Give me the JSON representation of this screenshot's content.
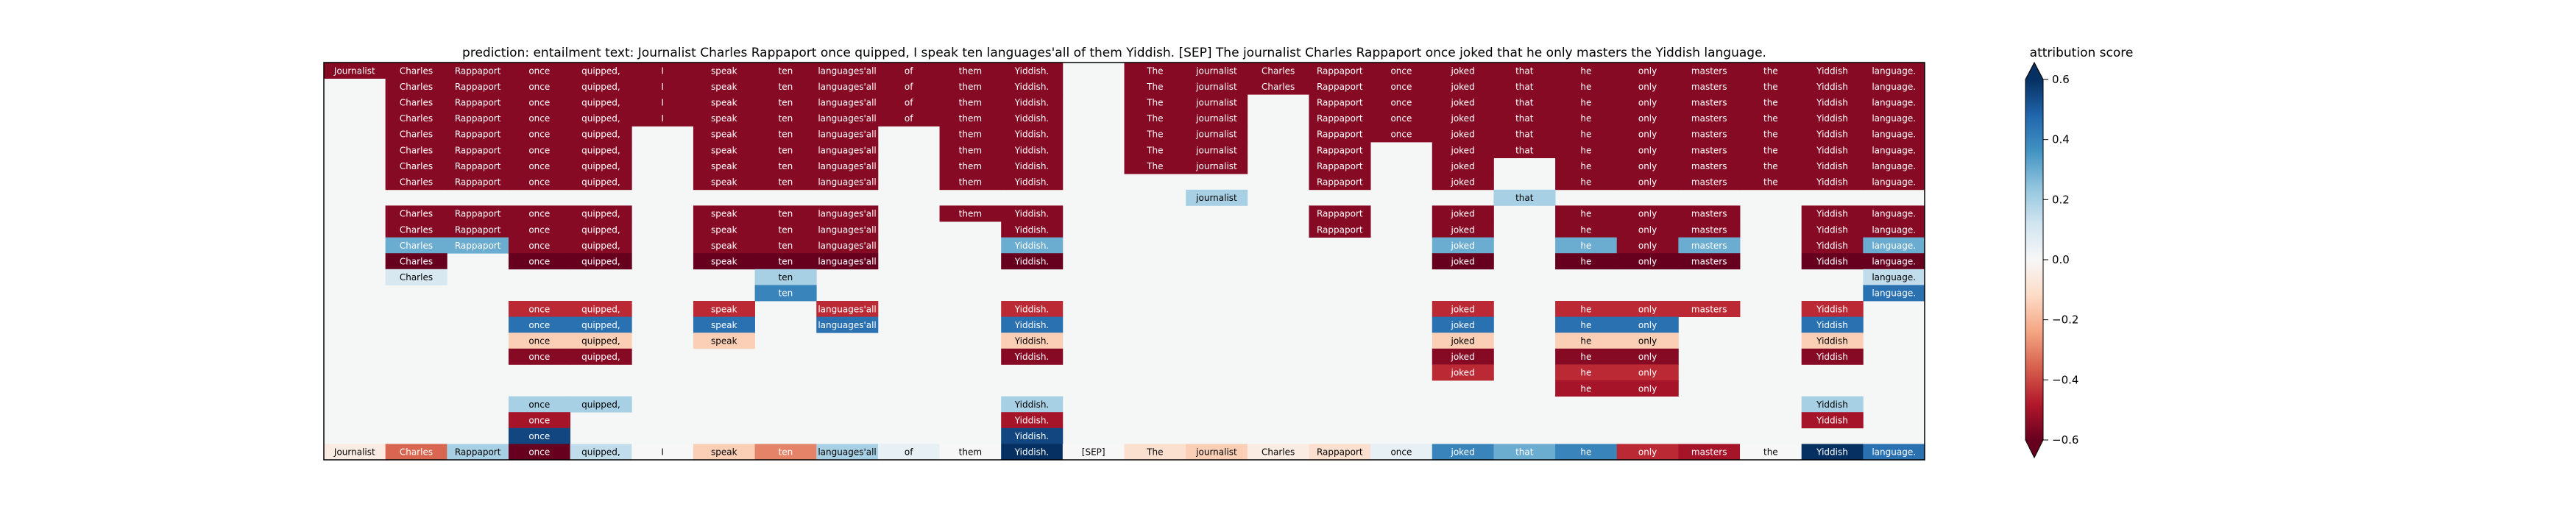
{
  "title": "prediction:  entailment     text:  Journalist Charles Rappaport once quipped, I speak ten languages'all of them Yiddish. [SEP] The journalist Charles Rappaport once joked that he only masters the Yiddish language.",
  "colorbar": {
    "label": "attribution score",
    "ticks": [
      "0.6",
      "0.4",
      "0.2",
      "0.0",
      "−0.2",
      "−0.4",
      "−0.6"
    ],
    "range": [
      -0.6,
      0.6
    ],
    "colormap": "RdBu"
  },
  "chart_data": {
    "type": "heatmap",
    "tokens": [
      "Journalist",
      "Charles",
      "Rappaport",
      "once",
      "quipped,",
      "I",
      "speak",
      "ten",
      "languages'all",
      "of",
      "them",
      "Yiddish.",
      "[SEP]",
      "The",
      "journalist",
      "Charles",
      "Rappaport",
      "once",
      "joked",
      "that",
      "he",
      "only",
      "masters",
      "the",
      "Yiddish",
      "language."
    ],
    "rows": [
      [
        [
          0,
          -0.55
        ],
        [
          1,
          -0.55
        ],
        [
          2,
          -0.55
        ],
        [
          3,
          -0.55
        ],
        [
          4,
          -0.55
        ],
        [
          5,
          -0.55
        ],
        [
          6,
          -0.55
        ],
        [
          7,
          -0.55
        ],
        [
          8,
          -0.55
        ],
        [
          9,
          -0.55
        ],
        [
          10,
          -0.55
        ],
        [
          11,
          -0.55
        ],
        [
          13,
          -0.55
        ],
        [
          14,
          -0.55
        ],
        [
          15,
          -0.55
        ],
        [
          16,
          -0.55
        ],
        [
          17,
          -0.55
        ],
        [
          18,
          -0.55
        ],
        [
          19,
          -0.55
        ],
        [
          20,
          -0.55
        ],
        [
          21,
          -0.55
        ],
        [
          22,
          -0.55
        ],
        [
          23,
          -0.55
        ],
        [
          24,
          -0.55
        ],
        [
          25,
          -0.55
        ]
      ],
      [
        [
          1,
          -0.55
        ],
        [
          2,
          -0.55
        ],
        [
          3,
          -0.55
        ],
        [
          4,
          -0.55
        ],
        [
          5,
          -0.55
        ],
        [
          6,
          -0.55
        ],
        [
          7,
          -0.55
        ],
        [
          8,
          -0.55
        ],
        [
          9,
          -0.55
        ],
        [
          10,
          -0.55
        ],
        [
          11,
          -0.55
        ],
        [
          13,
          -0.55
        ],
        [
          14,
          -0.55
        ],
        [
          15,
          -0.55
        ],
        [
          16,
          -0.55
        ],
        [
          17,
          -0.55
        ],
        [
          18,
          -0.55
        ],
        [
          19,
          -0.55
        ],
        [
          20,
          -0.55
        ],
        [
          21,
          -0.55
        ],
        [
          22,
          -0.55
        ],
        [
          23,
          -0.55
        ],
        [
          24,
          -0.55
        ],
        [
          25,
          -0.55
        ]
      ],
      [
        [
          1,
          -0.55
        ],
        [
          2,
          -0.55
        ],
        [
          3,
          -0.55
        ],
        [
          4,
          -0.55
        ],
        [
          5,
          -0.55
        ],
        [
          6,
          -0.55
        ],
        [
          7,
          -0.55
        ],
        [
          8,
          -0.55
        ],
        [
          9,
          -0.55
        ],
        [
          10,
          -0.55
        ],
        [
          11,
          -0.55
        ],
        [
          13,
          -0.55
        ],
        [
          14,
          -0.55
        ],
        [
          16,
          -0.55
        ],
        [
          17,
          -0.55
        ],
        [
          18,
          -0.55
        ],
        [
          19,
          -0.55
        ],
        [
          20,
          -0.55
        ],
        [
          21,
          -0.55
        ],
        [
          22,
          -0.55
        ],
        [
          23,
          -0.55
        ],
        [
          24,
          -0.55
        ],
        [
          25,
          -0.55
        ]
      ],
      [
        [
          1,
          -0.55
        ],
        [
          2,
          -0.55
        ],
        [
          3,
          -0.55
        ],
        [
          4,
          -0.55
        ],
        [
          5,
          -0.55
        ],
        [
          6,
          -0.55
        ],
        [
          7,
          -0.55
        ],
        [
          8,
          -0.55
        ],
        [
          9,
          -0.55
        ],
        [
          10,
          -0.55
        ],
        [
          11,
          -0.55
        ],
        [
          13,
          -0.55
        ],
        [
          14,
          -0.55
        ],
        [
          16,
          -0.55
        ],
        [
          17,
          -0.55
        ],
        [
          18,
          -0.55
        ],
        [
          19,
          -0.55
        ],
        [
          20,
          -0.55
        ],
        [
          21,
          -0.55
        ],
        [
          22,
          -0.55
        ],
        [
          23,
          -0.55
        ],
        [
          24,
          -0.55
        ],
        [
          25,
          -0.55
        ]
      ],
      [
        [
          1,
          -0.55
        ],
        [
          2,
          -0.55
        ],
        [
          3,
          -0.55
        ],
        [
          4,
          -0.55
        ],
        [
          6,
          -0.55
        ],
        [
          7,
          -0.55
        ],
        [
          8,
          -0.55
        ],
        [
          10,
          -0.55
        ],
        [
          11,
          -0.55
        ],
        [
          13,
          -0.55
        ],
        [
          14,
          -0.55
        ],
        [
          16,
          -0.55
        ],
        [
          17,
          -0.55
        ],
        [
          18,
          -0.55
        ],
        [
          19,
          -0.55
        ],
        [
          20,
          -0.55
        ],
        [
          21,
          -0.55
        ],
        [
          22,
          -0.55
        ],
        [
          23,
          -0.55
        ],
        [
          24,
          -0.55
        ],
        [
          25,
          -0.55
        ]
      ],
      [
        [
          1,
          -0.55
        ],
        [
          2,
          -0.55
        ],
        [
          3,
          -0.55
        ],
        [
          4,
          -0.55
        ],
        [
          6,
          -0.55
        ],
        [
          7,
          -0.55
        ],
        [
          8,
          -0.55
        ],
        [
          10,
          -0.55
        ],
        [
          11,
          -0.55
        ],
        [
          13,
          -0.55
        ],
        [
          14,
          -0.55
        ],
        [
          16,
          -0.55
        ],
        [
          18,
          -0.55
        ],
        [
          19,
          -0.55
        ],
        [
          20,
          -0.55
        ],
        [
          21,
          -0.55
        ],
        [
          22,
          -0.55
        ],
        [
          23,
          -0.55
        ],
        [
          24,
          -0.55
        ],
        [
          25,
          -0.55
        ]
      ],
      [
        [
          1,
          -0.55
        ],
        [
          2,
          -0.55
        ],
        [
          3,
          -0.55
        ],
        [
          4,
          -0.55
        ],
        [
          6,
          -0.55
        ],
        [
          7,
          -0.55
        ],
        [
          8,
          -0.55
        ],
        [
          10,
          -0.55
        ],
        [
          11,
          -0.55
        ],
        [
          13,
          -0.55
        ],
        [
          14,
          -0.55
        ],
        [
          16,
          -0.55
        ],
        [
          18,
          -0.55
        ],
        [
          20,
          -0.55
        ],
        [
          21,
          -0.55
        ],
        [
          22,
          -0.55
        ],
        [
          23,
          -0.55
        ],
        [
          24,
          -0.55
        ],
        [
          25,
          -0.55
        ]
      ],
      [
        [
          1,
          -0.55
        ],
        [
          2,
          -0.55
        ],
        [
          3,
          -0.55
        ],
        [
          4,
          -0.55
        ],
        [
          6,
          -0.55
        ],
        [
          7,
          -0.55
        ],
        [
          8,
          -0.55
        ],
        [
          10,
          -0.55
        ],
        [
          11,
          -0.55
        ],
        [
          16,
          -0.55
        ],
        [
          18,
          -0.55
        ],
        [
          20,
          -0.55
        ],
        [
          21,
          -0.55
        ],
        [
          22,
          -0.55
        ],
        [
          23,
          -0.55
        ],
        [
          24,
          -0.55
        ],
        [
          25,
          -0.55
        ]
      ],
      [
        [
          14,
          0.2
        ],
        [
          19,
          0.2
        ]
      ],
      [
        [
          1,
          -0.55
        ],
        [
          2,
          -0.55
        ],
        [
          3,
          -0.55
        ],
        [
          4,
          -0.55
        ],
        [
          6,
          -0.55
        ],
        [
          7,
          -0.55
        ],
        [
          8,
          -0.55
        ],
        [
          10,
          -0.55
        ],
        [
          11,
          -0.55
        ],
        [
          16,
          -0.55
        ],
        [
          18,
          -0.55
        ],
        [
          20,
          -0.55
        ],
        [
          21,
          -0.55
        ],
        [
          22,
          -0.55
        ],
        [
          24,
          -0.55
        ],
        [
          25,
          -0.55
        ]
      ],
      [
        [
          1,
          -0.55
        ],
        [
          2,
          -0.55
        ],
        [
          3,
          -0.55
        ],
        [
          4,
          -0.55
        ],
        [
          6,
          -0.55
        ],
        [
          7,
          -0.55
        ],
        [
          8,
          -0.55
        ],
        [
          11,
          -0.55
        ],
        [
          16,
          -0.55
        ],
        [
          18,
          -0.55
        ],
        [
          20,
          -0.55
        ],
        [
          21,
          -0.55
        ],
        [
          22,
          -0.55
        ],
        [
          24,
          -0.55
        ],
        [
          25,
          -0.55
        ]
      ],
      [
        [
          1,
          0.3
        ],
        [
          2,
          0.3
        ],
        [
          3,
          -0.55
        ],
        [
          4,
          -0.55
        ],
        [
          6,
          -0.55
        ],
        [
          7,
          -0.55
        ],
        [
          8,
          -0.55
        ],
        [
          11,
          0.3
        ],
        [
          18,
          0.3
        ],
        [
          20,
          0.3
        ],
        [
          21,
          -0.55
        ],
        [
          22,
          0.3
        ],
        [
          24,
          -0.55
        ],
        [
          25,
          0.3
        ]
      ],
      [
        [
          1,
          -0.6
        ],
        [
          3,
          -0.6
        ],
        [
          4,
          -0.6
        ],
        [
          6,
          -0.6
        ],
        [
          7,
          -0.6
        ],
        [
          8,
          -0.6
        ],
        [
          11,
          -0.6
        ],
        [
          18,
          -0.6
        ],
        [
          20,
          -0.6
        ],
        [
          21,
          -0.6
        ],
        [
          22,
          -0.6
        ],
        [
          24,
          -0.6
        ],
        [
          25,
          -0.6
        ]
      ],
      [
        [
          1,
          0.1
        ],
        [
          7,
          0.2
        ],
        [
          25,
          0.15
        ]
      ],
      [
        [
          7,
          0.4
        ],
        [
          25,
          0.45
        ]
      ],
      [
        [
          3,
          -0.45
        ],
        [
          4,
          -0.45
        ],
        [
          6,
          -0.45
        ],
        [
          8,
          -0.45
        ],
        [
          11,
          -0.45
        ],
        [
          18,
          -0.45
        ],
        [
          20,
          -0.45
        ],
        [
          21,
          -0.45
        ],
        [
          22,
          -0.45
        ],
        [
          24,
          -0.45
        ]
      ],
      [
        [
          3,
          0.45
        ],
        [
          4,
          0.45
        ],
        [
          6,
          0.45
        ],
        [
          8,
          0.45
        ],
        [
          11,
          0.45
        ],
        [
          18,
          0.45
        ],
        [
          20,
          0.45
        ],
        [
          21,
          0.45
        ],
        [
          24,
          0.45
        ]
      ],
      [
        [
          3,
          -0.15
        ],
        [
          4,
          -0.15
        ],
        [
          6,
          -0.15
        ],
        [
          11,
          -0.15
        ],
        [
          18,
          -0.15
        ],
        [
          20,
          -0.15
        ],
        [
          21,
          -0.15
        ],
        [
          24,
          -0.15
        ]
      ],
      [
        [
          3,
          -0.55
        ],
        [
          4,
          -0.55
        ],
        [
          11,
          -0.55
        ],
        [
          18,
          -0.55
        ],
        [
          20,
          -0.55
        ],
        [
          21,
          -0.55
        ],
        [
          24,
          -0.55
        ]
      ],
      [
        [
          18,
          -0.45
        ],
        [
          20,
          -0.45
        ],
        [
          21,
          -0.45
        ]
      ],
      [
        [
          20,
          -0.5
        ],
        [
          21,
          -0.5
        ]
      ],
      [
        [
          3,
          0.2
        ],
        [
          4,
          0.2
        ],
        [
          11,
          0.2
        ],
        [
          24,
          0.2
        ]
      ],
      [
        [
          3,
          -0.5
        ],
        [
          11,
          -0.5
        ],
        [
          24,
          -0.5
        ]
      ],
      [
        [
          3,
          0.55
        ],
        [
          11,
          0.55
        ]
      ],
      [
        [
          0,
          -0.05
        ],
        [
          1,
          -0.35
        ],
        [
          2,
          0.2
        ],
        [
          3,
          -0.6
        ],
        [
          4,
          0.15
        ],
        [
          5,
          0.0
        ],
        [
          6,
          -0.15
        ],
        [
          7,
          -0.3
        ],
        [
          8,
          0.2
        ],
        [
          9,
          0.05
        ],
        [
          10,
          0.0
        ],
        [
          11,
          0.6
        ],
        [
          12,
          0.0
        ],
        [
          13,
          -0.1
        ],
        [
          14,
          -0.15
        ],
        [
          15,
          -0.05
        ],
        [
          16,
          -0.1
        ],
        [
          17,
          0.05
        ],
        [
          18,
          0.4
        ],
        [
          19,
          0.3
        ],
        [
          20,
          0.4
        ],
        [
          21,
          -0.45
        ],
        [
          22,
          -0.5
        ],
        [
          23,
          0.0
        ],
        [
          24,
          0.6
        ],
        [
          25,
          0.45
        ]
      ]
    ]
  }
}
